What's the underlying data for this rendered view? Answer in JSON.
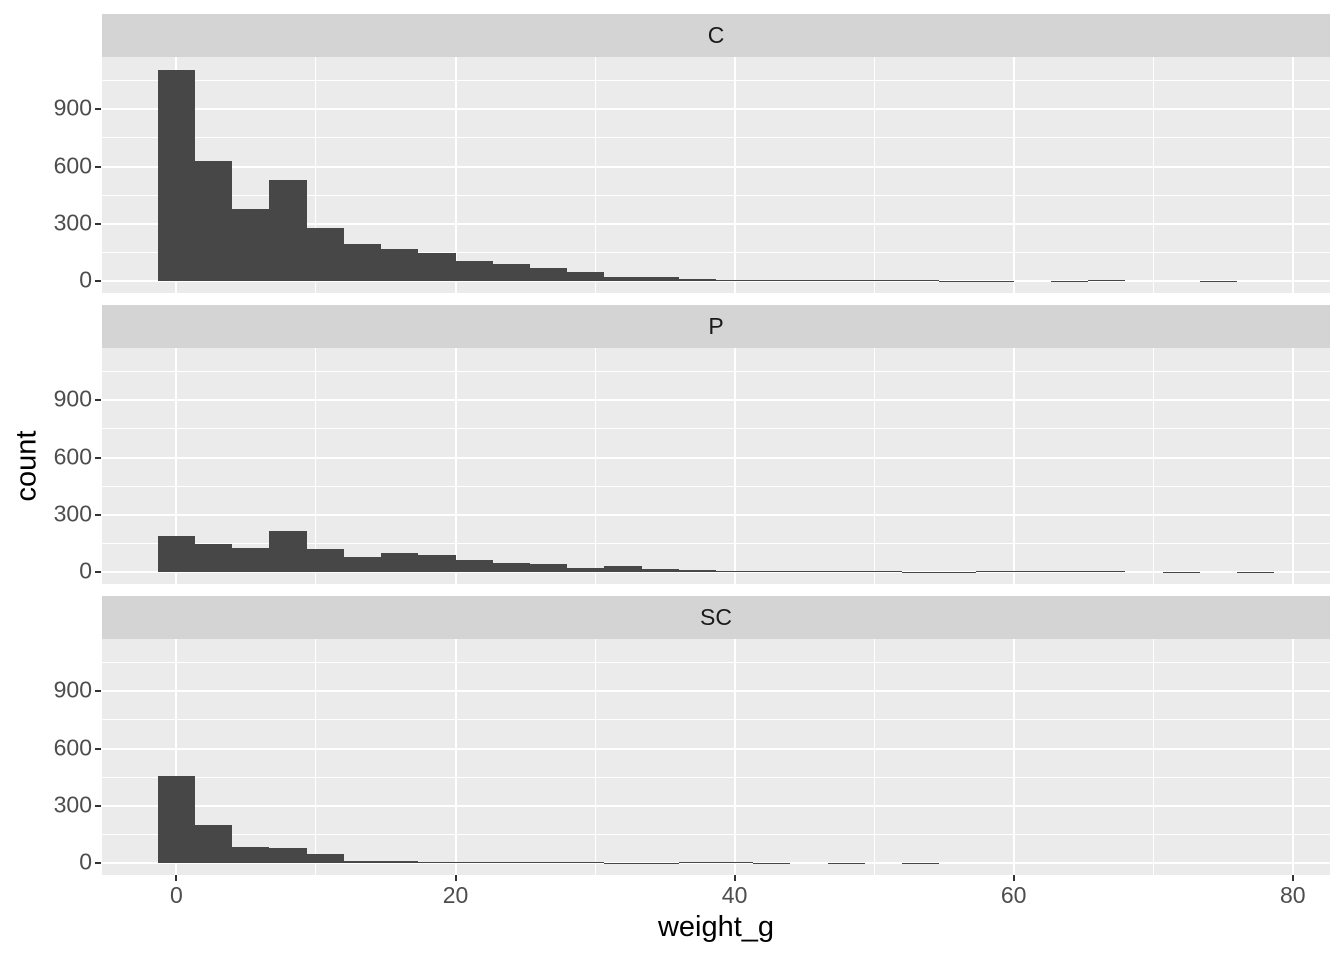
{
  "chart_data": {
    "type": "histogram",
    "title": "",
    "xlabel": "weight_g",
    "ylabel": "count",
    "facet_labels": [
      "C",
      "P",
      "SC"
    ],
    "bin_start": -1.3333,
    "bin_width": 2.6667,
    "x_domain": [
      -5.333,
      82.667
    ],
    "y_domain": [
      -64,
      1175
    ],
    "x_ticks": [
      0,
      20,
      40,
      60,
      80
    ],
    "x_minor_ticks": [
      10,
      30,
      50,
      70
    ],
    "y_ticks": [
      0,
      300,
      600,
      900
    ],
    "y_minor_ticks": [
      150,
      450,
      750,
      1050
    ],
    "grid": "on",
    "legend": "none",
    "facets": [
      {
        "label": "C",
        "counts": [
          1105,
          628,
          375,
          530,
          278,
          191,
          167,
          145,
          102,
          86,
          65,
          47,
          21,
          21,
          11,
          5,
          5,
          4,
          4,
          2,
          2,
          1,
          1,
          0,
          1,
          2,
          0,
          0,
          1,
          0
        ]
      },
      {
        "label": "P",
        "counts": [
          190,
          145,
          123,
          212,
          118,
          78,
          98,
          88,
          63,
          46,
          42,
          19,
          28,
          14,
          8,
          3,
          3,
          2,
          2,
          2,
          1,
          1,
          2,
          2,
          2,
          3,
          0,
          1,
          0,
          1
        ]
      },
      {
        "label": "SC",
        "counts": [
          455,
          200,
          84,
          80,
          46,
          10,
          10,
          5,
          5,
          4,
          4,
          2,
          1,
          1,
          3,
          2,
          1,
          0,
          1,
          0,
          1,
          0,
          0,
          0,
          0,
          0,
          0,
          0,
          0,
          0
        ]
      }
    ],
    "colors": {
      "bar": "#474747",
      "panel_background": "#EBEBEB",
      "strip_background": "#D4D4D4",
      "gridline": "#FFFFFF",
      "axis_text": "#4D4D4D",
      "axis_title": "#000000",
      "strip_text": "#1A1A1A",
      "tick_mark": "#333333",
      "figure_background": "#FFFFFF"
    }
  }
}
